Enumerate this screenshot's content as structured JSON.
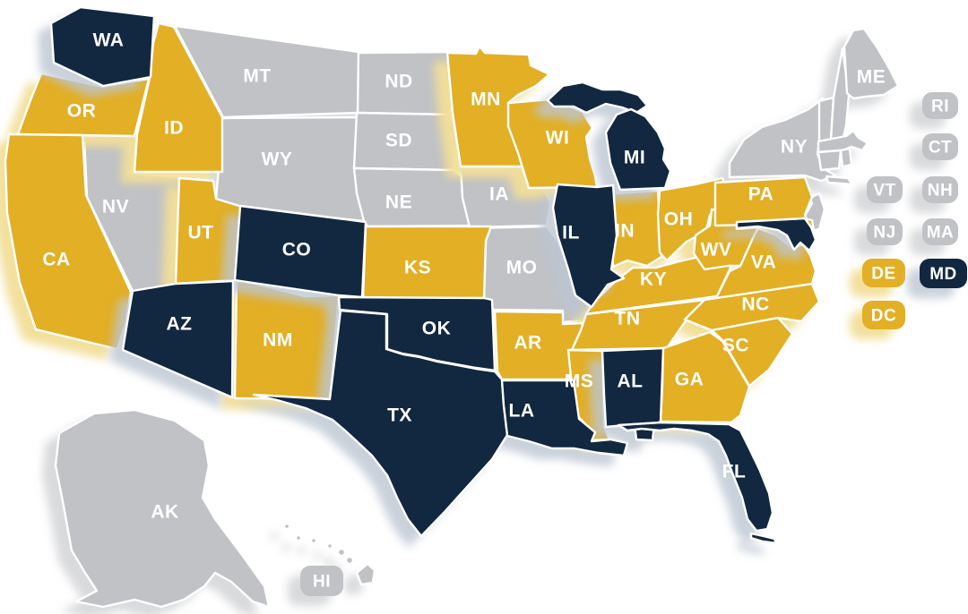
{
  "map": {
    "name": "us-states-category-map",
    "background": "#FFFFFF",
    "palette": {
      "navy": "#122740",
      "gold": "#E2AF25",
      "gray": "#C0C2C5",
      "border": "#FFFFFF",
      "label": "#FFFFFF"
    },
    "shadows": {
      "gray": "rgba(213,214,216,0.9)",
      "gold": "rgba(242,222,152,0.95)",
      "navy": "rgba(188,198,210,0.8)"
    },
    "states": [
      {
        "code": "WA",
        "category": "navy"
      },
      {
        "code": "OR",
        "category": "gold"
      },
      {
        "code": "CA",
        "category": "gold"
      },
      {
        "code": "NV",
        "category": "gray"
      },
      {
        "code": "ID",
        "category": "gold"
      },
      {
        "code": "MT",
        "category": "gray"
      },
      {
        "code": "WY",
        "category": "gray"
      },
      {
        "code": "UT",
        "category": "gold"
      },
      {
        "code": "CO",
        "category": "navy"
      },
      {
        "code": "AZ",
        "category": "navy"
      },
      {
        "code": "NM",
        "category": "gold"
      },
      {
        "code": "ND",
        "category": "gray"
      },
      {
        "code": "SD",
        "category": "gray"
      },
      {
        "code": "NE",
        "category": "gray"
      },
      {
        "code": "KS",
        "category": "gold"
      },
      {
        "code": "OK",
        "category": "navy"
      },
      {
        "code": "TX",
        "category": "navy"
      },
      {
        "code": "MN",
        "category": "gold"
      },
      {
        "code": "IA",
        "category": "gray"
      },
      {
        "code": "MO",
        "category": "gray"
      },
      {
        "code": "AR",
        "category": "gold"
      },
      {
        "code": "LA",
        "category": "navy"
      },
      {
        "code": "WI",
        "category": "gold"
      },
      {
        "code": "IL",
        "category": "navy"
      },
      {
        "code": "MI",
        "category": "navy"
      },
      {
        "code": "IN",
        "category": "gold"
      },
      {
        "code": "OH",
        "category": "gold"
      },
      {
        "code": "KY",
        "category": "gold"
      },
      {
        "code": "TN",
        "category": "gold"
      },
      {
        "code": "MS",
        "category": "gold"
      },
      {
        "code": "AL",
        "category": "navy"
      },
      {
        "code": "GA",
        "category": "gold"
      },
      {
        "code": "FL",
        "category": "navy"
      },
      {
        "code": "SC",
        "category": "gold"
      },
      {
        "code": "NC",
        "category": "gold"
      },
      {
        "code": "VA",
        "category": "gold"
      },
      {
        "code": "WV",
        "category": "gold"
      },
      {
        "code": "PA",
        "category": "gold"
      },
      {
        "code": "NY",
        "category": "gray"
      },
      {
        "code": "NJ",
        "category": "gray"
      },
      {
        "code": "MD",
        "category": "navy"
      },
      {
        "code": "DE",
        "category": "gold"
      },
      {
        "code": "VT",
        "category": "gray"
      },
      {
        "code": "NH",
        "category": "gray"
      },
      {
        "code": "MA",
        "category": "gray"
      },
      {
        "code": "CT",
        "category": "gray"
      },
      {
        "code": "RI",
        "category": "gray"
      },
      {
        "code": "ME",
        "category": "gray"
      },
      {
        "code": "DC",
        "category": "gold"
      },
      {
        "code": "AK",
        "category": "gray"
      },
      {
        "code": "HI",
        "category": "gray"
      }
    ],
    "map_labels": [
      "WA",
      "OR",
      "CA",
      "NV",
      "ID",
      "MT",
      "WY",
      "UT",
      "CO",
      "AZ",
      "NM",
      "ND",
      "SD",
      "NE",
      "KS",
      "OK",
      "TX",
      "MN",
      "IA",
      "MO",
      "AR",
      "LA",
      "WI",
      "IL",
      "MI",
      "IN",
      "OH",
      "KY",
      "TN",
      "MS",
      "AL",
      "GA",
      "FL",
      "SC",
      "NC",
      "VA",
      "WV",
      "PA",
      "NY",
      "ME",
      "AK"
    ],
    "badges": [
      {
        "code": "RI",
        "category": "gray"
      },
      {
        "code": "CT",
        "category": "gray"
      },
      {
        "code": "VT",
        "category": "gray"
      },
      {
        "code": "NH",
        "category": "gray"
      },
      {
        "code": "NJ",
        "category": "gray"
      },
      {
        "code": "MA",
        "category": "gray"
      },
      {
        "code": "DE",
        "category": "gold"
      },
      {
        "code": "MD",
        "category": "navy"
      },
      {
        "code": "DC",
        "category": "gold"
      },
      {
        "code": "HI",
        "category": "gray"
      }
    ]
  }
}
